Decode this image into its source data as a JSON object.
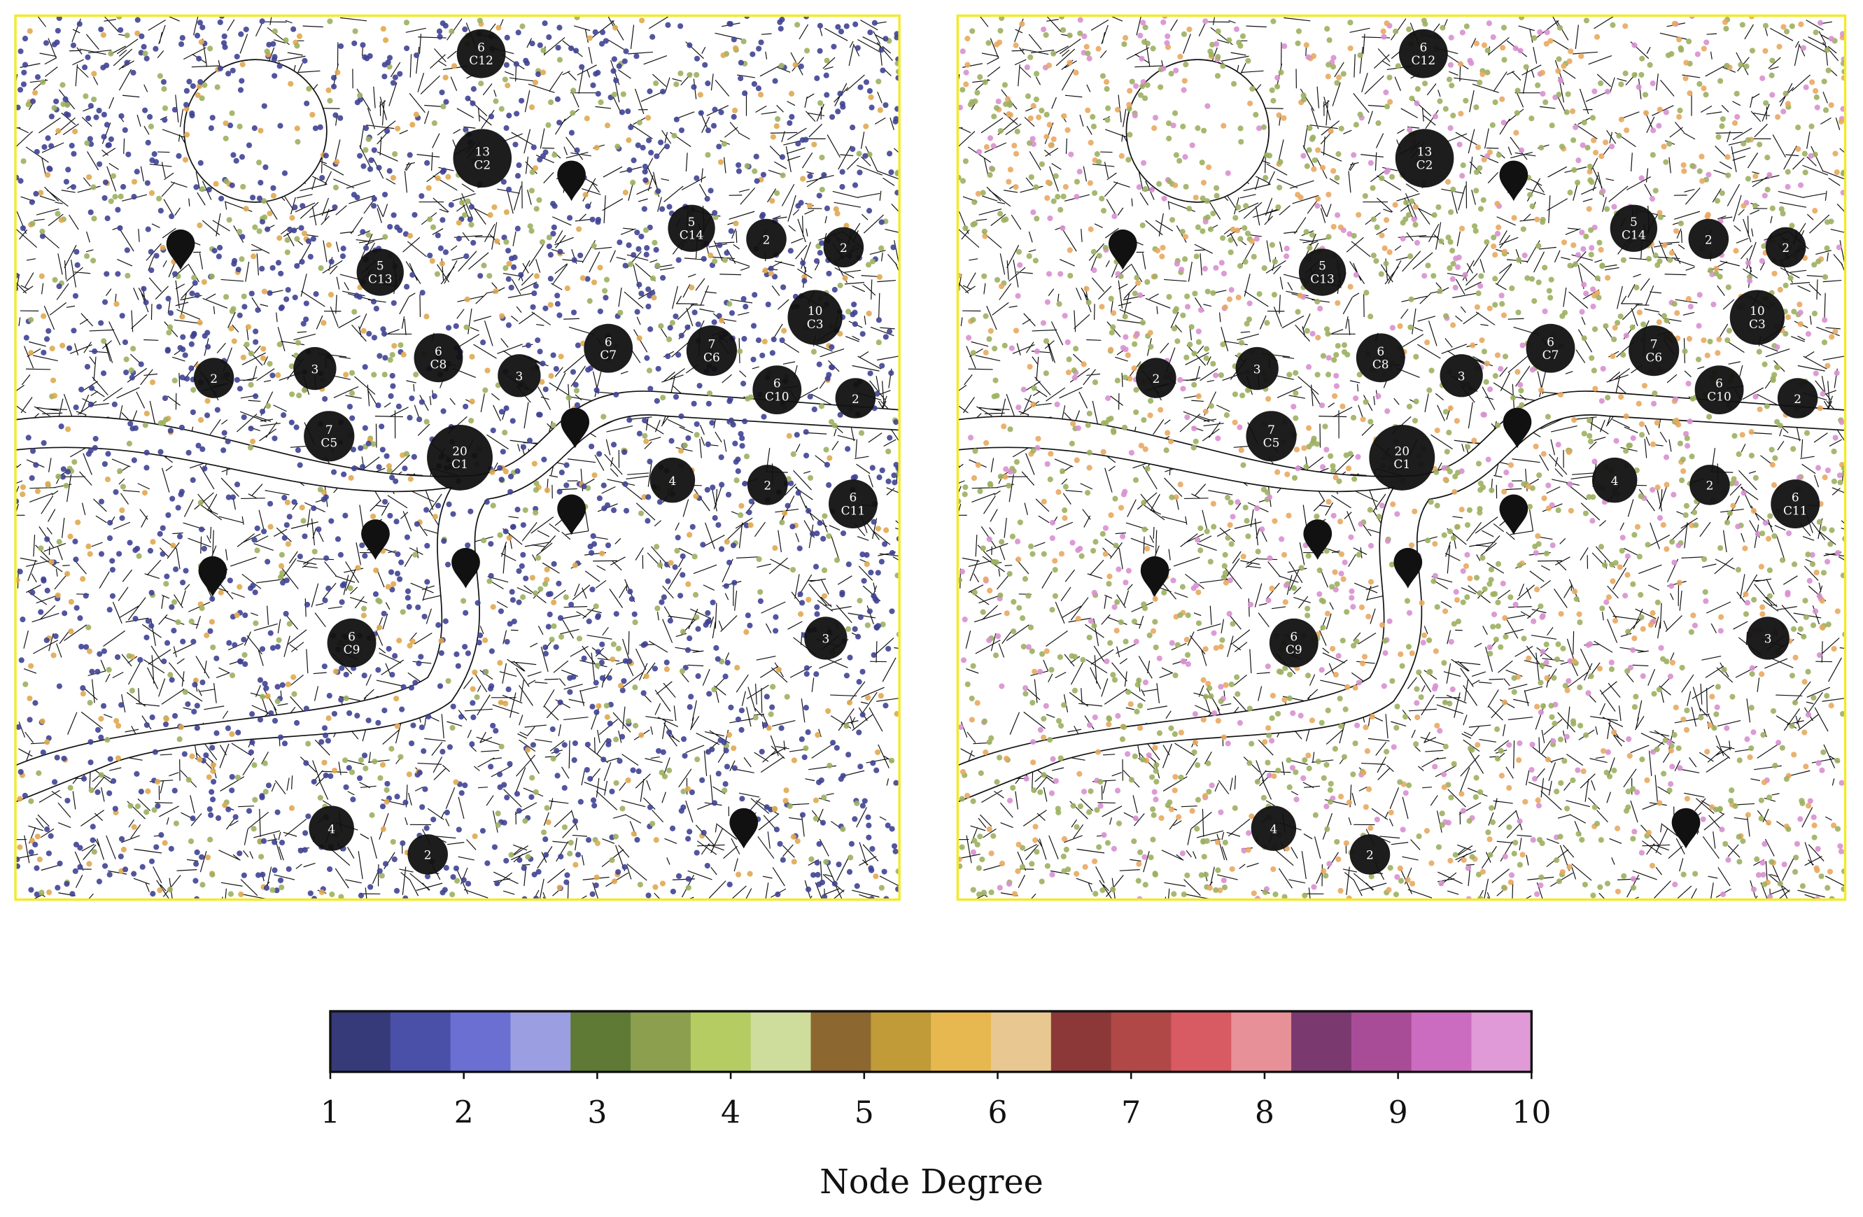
{
  "clusters": [
    {
      "count": 6,
      "label": "C12"
    },
    {
      "count": 13,
      "label": "C2"
    },
    {
      "count": 5,
      "label": "C14"
    },
    {
      "count": 2
    },
    {
      "count": 2
    },
    {
      "count": 5,
      "label": "C13"
    },
    {
      "count": 10,
      "label": "C3"
    },
    {
      "count": 2
    },
    {
      "count": 3
    },
    {
      "count": 6,
      "label": "C8"
    },
    {
      "count": 3
    },
    {
      "count": 6,
      "label": "C7"
    },
    {
      "count": 7,
      "label": "C6"
    },
    {
      "count": 6,
      "label": "C10"
    },
    {
      "count": 2
    },
    {
      "count": 7,
      "label": "C5"
    },
    {
      "count": 20,
      "label": "C1"
    },
    {
      "count": 4
    },
    {
      "count": 2
    },
    {
      "count": 6,
      "label": "C11"
    },
    {
      "count": 6,
      "label": "C9"
    },
    {
      "count": 3
    },
    {
      "count": 4
    },
    {
      "count": 2
    }
  ],
  "colorbar": {
    "label": "Node Degree",
    "ticks": [
      1,
      2,
      3,
      4,
      5,
      6,
      7,
      8,
      9,
      10
    ],
    "colors": [
      "#363a78",
      "#4a50a8",
      "#6b6fd2",
      "#9b9ee0",
      "#5e7a35",
      "#8c9f4e",
      "#b5cc62",
      "#cedc9c",
      "#8c6730",
      "#c09b38",
      "#e8b850",
      "#e8c890",
      "#8c3838",
      "#b04848",
      "#d85a62",
      "#e89098",
      "#7a3a70",
      "#a84c98",
      "#cc6cc0",
      "#e09ad8"
    ]
  }
}
